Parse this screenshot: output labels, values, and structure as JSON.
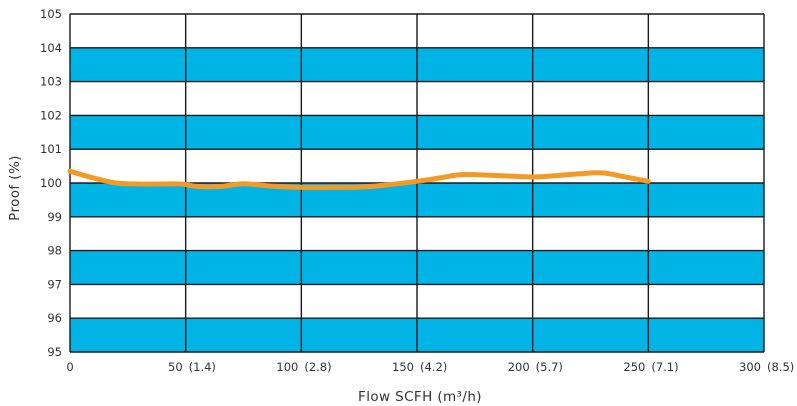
{
  "chart_data": {
    "type": "line",
    "title": "",
    "xlabel": "Flow SCFH (m³/h)",
    "ylabel": "Proof (%)",
    "xlim": [
      0,
      300
    ],
    "ylim": [
      95,
      105
    ],
    "x_ticks": [
      {
        "value": 0,
        "label": "0",
        "sub": ""
      },
      {
        "value": 50,
        "label": "50",
        "sub": "(1.4)"
      },
      {
        "value": 100,
        "label": "100",
        "sub": "(2.8)"
      },
      {
        "value": 150,
        "label": "150",
        "sub": "(4.2)"
      },
      {
        "value": 200,
        "label": "200",
        "sub": "(5.7)"
      },
      {
        "value": 250,
        "label": "250",
        "sub": "(7.1)"
      },
      {
        "value": 300,
        "label": "300",
        "sub": "(8.5)"
      }
    ],
    "y_ticks": [
      "95",
      "96",
      "97",
      "98",
      "99",
      "100",
      "101",
      "102",
      "103",
      "104",
      "105"
    ],
    "band_color": "#00b4e6",
    "line_color": "#f39a26",
    "grid": true,
    "series": [
      {
        "x": [
          0,
          10,
          20,
          30,
          40,
          48,
          55,
          65,
          75,
          85,
          100,
          115,
          125,
          135,
          150,
          160,
          170,
          185,
          200,
          210,
          220,
          230,
          240,
          250
        ],
        "y": [
          100.35,
          100.15,
          100.0,
          99.97,
          99.97,
          99.97,
          99.9,
          99.9,
          99.98,
          99.92,
          99.87,
          99.87,
          99.88,
          99.93,
          100.05,
          100.15,
          100.25,
          100.22,
          100.18,
          100.22,
          100.27,
          100.3,
          100.18,
          100.05
        ]
      }
    ]
  }
}
